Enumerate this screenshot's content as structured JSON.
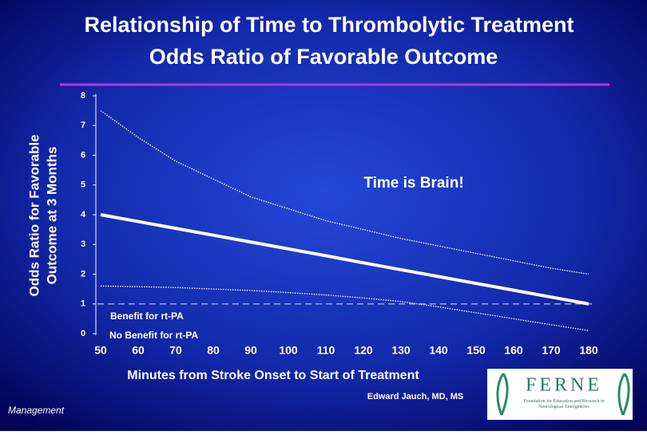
{
  "chart_data": {
    "type": "line",
    "title": "Relationship of Time to Thrombolytic Treatment",
    "subtitle": "Odds Ratio of Favorable Outcome",
    "xlabel": "Minutes from Stroke Onset to Start of Treatment",
    "ylabel": [
      "Odds Ratio for Favorable",
      "Outcome at 3 Months"
    ],
    "x": [
      50,
      60,
      70,
      80,
      90,
      100,
      110,
      120,
      130,
      140,
      150,
      160,
      170,
      180
    ],
    "series": [
      {
        "color": "#ffffff",
        "line_style": "dotted",
        "values": [
          7.5,
          6.6,
          5.8,
          5.2,
          4.6,
          4.2,
          3.8,
          3.5,
          3.2,
          2.95,
          2.7,
          2.45,
          2.2,
          2.0
        ]
      },
      {
        "color": "#ffffff",
        "line_style": "solid",
        "values": [
          4.0,
          3.77,
          3.54,
          3.31,
          3.08,
          2.85,
          2.62,
          2.38,
          2.15,
          1.92,
          1.69,
          1.46,
          1.23,
          1.0
        ]
      },
      {
        "color": "#ffffff",
        "line_style": "dotted",
        "values": [
          1.6,
          1.58,
          1.55,
          1.5,
          1.45,
          1.38,
          1.3,
          1.2,
          1.08,
          0.9,
          0.7,
          0.5,
          0.3,
          0.1
        ]
      }
    ],
    "reference_line": 1,
    "annotations": [
      "Benefit for rt-PA",
      "No Benefit for rt-PA",
      "Time is Brain!"
    ],
    "xlim": [
      50,
      180
    ],
    "xticks": [
      50,
      60,
      70,
      80,
      90,
      100,
      110,
      120,
      130,
      140,
      150,
      160,
      170,
      180
    ],
    "ylim": [
      0,
      8
    ],
    "yticks": [
      0,
      1,
      2,
      3,
      4,
      5,
      6,
      7,
      8
    ]
  },
  "author": "Edward Jauch, MD, MS",
  "footer": "Management",
  "logo": {
    "title": "FERNE",
    "caption": "Foundation for Education and Research in Neurological Emergencies"
  }
}
